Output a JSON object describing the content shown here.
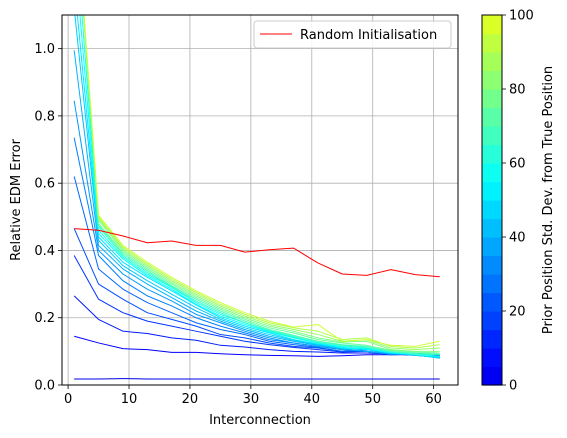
{
  "chart_data": {
    "type": "line",
    "xlabel": "Interconnection",
    "ylabel": "Relative EDM Error",
    "xlim": [
      -1,
      64
    ],
    "ylim": [
      0,
      1.1
    ],
    "xticks": [
      0,
      10,
      20,
      30,
      40,
      50,
      60
    ],
    "yticks": [
      0.0,
      0.2,
      0.4,
      0.6,
      0.8,
      1.0
    ],
    "grid": true,
    "legend": {
      "placement": "top-right",
      "entries": [
        "Random Initialisation"
      ]
    },
    "colorbar": {
      "label": "Prior Position Std. Dev. from True Position",
      "range": [
        0,
        100
      ],
      "ticks": [
        0,
        20,
        40,
        60,
        80,
        100
      ],
      "colormap": "jet-truncated",
      "levels": 20
    },
    "x": [
      1,
      5,
      9,
      13,
      17,
      21,
      25,
      29,
      33,
      37,
      41,
      45,
      49,
      53,
      57,
      61
    ],
    "series": [
      {
        "name": "Random Initialisation",
        "color": "#ff0000",
        "values": [
          0.465,
          0.46,
          0.443,
          0.423,
          0.428,
          0.415,
          0.415,
          0.395,
          0.402,
          0.407,
          0.363,
          0.33,
          0.326,
          0.343,
          0.328,
          0.322
        ]
      },
      {
        "prior_std": 0,
        "values": [
          0.018,
          0.018,
          0.019,
          0.018,
          0.018,
          0.018,
          0.018,
          0.018,
          0.018,
          0.018,
          0.018,
          0.018,
          0.018,
          0.018,
          0.018,
          0.018
        ]
      },
      {
        "prior_std": 5,
        "values": [
          0.145,
          0.125,
          0.108,
          0.105,
          0.097,
          0.097,
          0.093,
          0.09,
          0.088,
          0.087,
          0.085,
          0.087,
          0.09,
          0.09,
          0.092,
          0.09
        ]
      },
      {
        "prior_std": 10,
        "values": [
          0.265,
          0.195,
          0.16,
          0.153,
          0.14,
          0.133,
          0.118,
          0.113,
          0.105,
          0.1,
          0.098,
          0.095,
          0.095,
          0.092,
          0.093,
          0.088
        ]
      },
      {
        "prior_std": 15,
        "values": [
          0.385,
          0.255,
          0.215,
          0.19,
          0.175,
          0.16,
          0.145,
          0.13,
          0.12,
          0.112,
          0.105,
          0.098,
          0.1,
          0.09,
          0.09,
          0.085
        ]
      },
      {
        "prior_std": 20,
        "values": [
          0.465,
          0.3,
          0.255,
          0.215,
          0.195,
          0.175,
          0.15,
          0.14,
          0.125,
          0.115,
          0.11,
          0.1,
          0.1,
          0.092,
          0.088,
          0.082
        ]
      },
      {
        "prior_std": 25,
        "values": [
          0.62,
          0.345,
          0.285,
          0.245,
          0.215,
          0.185,
          0.165,
          0.15,
          0.13,
          0.12,
          0.112,
          0.1,
          0.105,
          0.095,
          0.09,
          0.08
        ]
      },
      {
        "prior_std": 30,
        "values": [
          0.735,
          0.385,
          0.31,
          0.265,
          0.235,
          0.2,
          0.175,
          0.155,
          0.135,
          0.125,
          0.115,
          0.105,
          0.1,
          0.09,
          0.092,
          0.085
        ]
      },
      {
        "prior_std": 35,
        "values": [
          0.845,
          0.4,
          0.33,
          0.285,
          0.25,
          0.21,
          0.185,
          0.16,
          0.14,
          0.125,
          0.115,
          0.105,
          0.1,
          0.092,
          0.09,
          0.082
        ]
      },
      {
        "prior_std": 40,
        "values": [
          0.995,
          0.415,
          0.345,
          0.3,
          0.26,
          0.22,
          0.19,
          0.165,
          0.145,
          0.13,
          0.118,
          0.108,
          0.1,
          0.095,
          0.09,
          0.08
        ]
      },
      {
        "prior_std": 45,
        "values": [
          1.12,
          0.43,
          0.355,
          0.31,
          0.27,
          0.23,
          0.195,
          0.17,
          0.15,
          0.133,
          0.12,
          0.11,
          0.105,
          0.095,
          0.088,
          0.082
        ]
      },
      {
        "prior_std": 50,
        "values": [
          1.2,
          0.44,
          0.365,
          0.32,
          0.28,
          0.238,
          0.2,
          0.175,
          0.155,
          0.135,
          0.122,
          0.112,
          0.105,
          0.098,
          0.09,
          0.08
        ]
      },
      {
        "prior_std": 55,
        "values": [
          1.3,
          0.45,
          0.375,
          0.325,
          0.285,
          0.24,
          0.205,
          0.18,
          0.158,
          0.14,
          0.125,
          0.11,
          0.108,
          0.095,
          0.092,
          0.085
        ]
      },
      {
        "prior_std": 60,
        "values": [
          1.4,
          0.46,
          0.38,
          0.33,
          0.29,
          0.245,
          0.21,
          0.185,
          0.16,
          0.142,
          0.125,
          0.115,
          0.11,
          0.1,
          0.09,
          0.085
        ]
      },
      {
        "prior_std": 65,
        "values": [
          1.5,
          0.47,
          0.385,
          0.335,
          0.292,
          0.25,
          0.215,
          0.185,
          0.162,
          0.145,
          0.128,
          0.118,
          0.112,
          0.098,
          0.092,
          0.09
        ]
      },
      {
        "prior_std": 70,
        "values": [
          1.5,
          0.475,
          0.39,
          0.34,
          0.295,
          0.255,
          0.22,
          0.19,
          0.165,
          0.148,
          0.13,
          0.12,
          0.115,
          0.1,
          0.095,
          0.092
        ]
      },
      {
        "prior_std": 75,
        "values": [
          1.5,
          0.48,
          0.395,
          0.345,
          0.3,
          0.26,
          0.225,
          0.195,
          0.17,
          0.155,
          0.135,
          0.125,
          0.118,
          0.103,
          0.098,
          0.095
        ]
      },
      {
        "prior_std": 80,
        "values": [
          1.5,
          0.49,
          0.4,
          0.35,
          0.305,
          0.265,
          0.23,
          0.2,
          0.175,
          0.16,
          0.14,
          0.128,
          0.13,
          0.105,
          0.1,
          0.1
        ]
      },
      {
        "prior_std": 85,
        "values": [
          1.5,
          0.495,
          0.405,
          0.355,
          0.31,
          0.27,
          0.235,
          0.205,
          0.18,
          0.165,
          0.15,
          0.13,
          0.135,
          0.11,
          0.105,
          0.11
        ]
      },
      {
        "prior_std": 90,
        "values": [
          1.5,
          0.5,
          0.41,
          0.36,
          0.315,
          0.275,
          0.24,
          0.21,
          0.185,
          0.17,
          0.16,
          0.135,
          0.14,
          0.115,
          0.11,
          0.12
        ]
      },
      {
        "prior_std": 95,
        "values": [
          1.5,
          0.505,
          0.415,
          0.365,
          0.32,
          0.28,
          0.245,
          0.215,
          0.19,
          0.172,
          0.18,
          0.13,
          0.135,
          0.118,
          0.115,
          0.13
        ]
      }
    ]
  }
}
